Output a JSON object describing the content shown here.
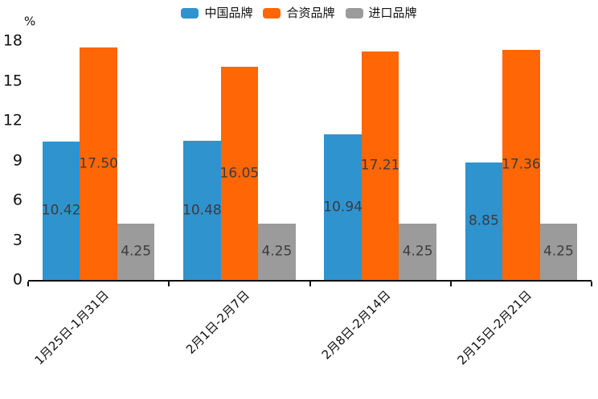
{
  "chart_data": {
    "type": "bar",
    "title": "",
    "xlabel": "",
    "ylabel": "%",
    "categories": [
      "1月25日-1月31日",
      "2月1日-2月7日",
      "2月8日-2月14日",
      "2月15日-2月21日"
    ],
    "series": [
      {
        "name": "中国品牌",
        "color": "#2F93CE",
        "values": [
          10.42,
          10.48,
          10.94,
          8.85
        ]
      },
      {
        "name": "合资品牌",
        "color": "#FF6605",
        "values": [
          17.5,
          16.05,
          17.21,
          17.36
        ]
      },
      {
        "name": "进口品牌",
        "color": "#9B9B9B",
        "values": [
          4.25,
          4.25,
          4.25,
          4.25
        ]
      }
    ],
    "value_labels_decimals": 2,
    "yticks": [
      0,
      3,
      6,
      9,
      12,
      15,
      18
    ],
    "ylim": [
      0,
      18
    ],
    "grid": false,
    "legend_position": "top-center",
    "background_color": "#FFFFFF",
    "axis_color": "#111111",
    "value_label_color": "#3C3C3C"
  }
}
